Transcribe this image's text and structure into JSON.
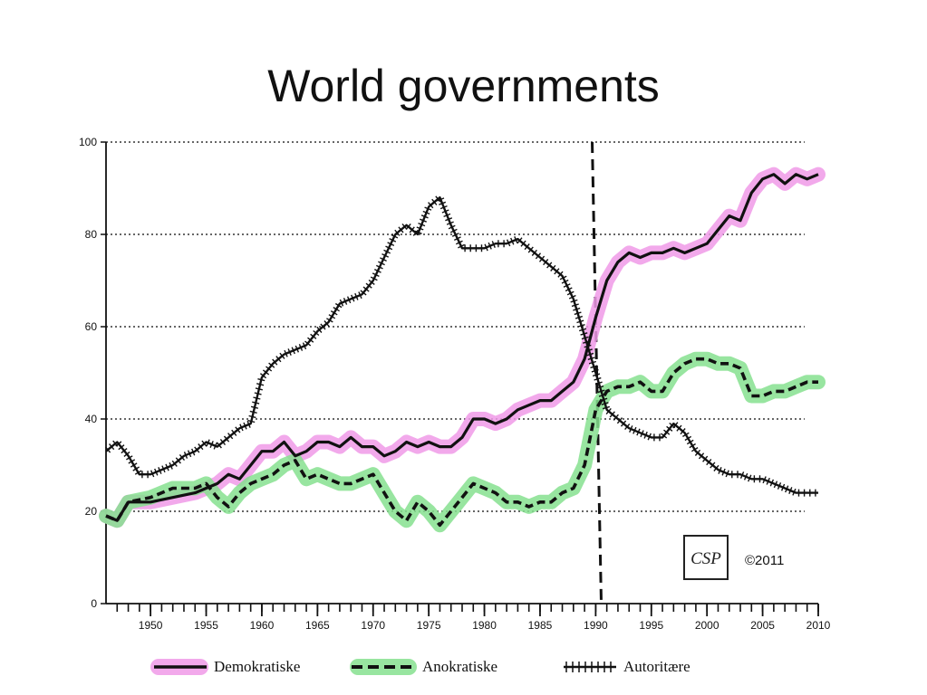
{
  "slide": {
    "title": "World governments"
  },
  "colors": {
    "demokratiske_highlight": "#f09ae8",
    "anokratiske_highlight": "#86e08f",
    "line": "#111111",
    "grid": "#333333"
  },
  "chart_data": {
    "type": "line",
    "x_ticks": [
      1950,
      1955,
      1960,
      1965,
      1970,
      1975,
      1980,
      1985,
      1990,
      1995,
      2000,
      2005,
      2010
    ],
    "y_ticks": [
      0,
      20,
      40,
      60,
      80,
      100
    ],
    "xlim": [
      1946,
      2010
    ],
    "ylim": [
      0,
      100
    ],
    "grid": true,
    "vertical_marker_x": 1990.5,
    "legend_position": "bottom",
    "series": [
      {
        "name": "Demokratiske",
        "style": "solid",
        "highlight": "pink",
        "points": [
          [
            1946,
            19
          ],
          [
            1947,
            18
          ],
          [
            1948,
            22
          ],
          [
            1950,
            22
          ],
          [
            1952,
            23
          ],
          [
            1954,
            24
          ],
          [
            1955,
            25
          ],
          [
            1956,
            26
          ],
          [
            1957,
            28
          ],
          [
            1958,
            27
          ],
          [
            1959,
            30
          ],
          [
            1960,
            33
          ],
          [
            1961,
            33
          ],
          [
            1962,
            35
          ],
          [
            1963,
            32
          ],
          [
            1964,
            33
          ],
          [
            1965,
            35
          ],
          [
            1966,
            35
          ],
          [
            1967,
            34
          ],
          [
            1968,
            36
          ],
          [
            1969,
            34
          ],
          [
            1970,
            34
          ],
          [
            1971,
            32
          ],
          [
            1972,
            33
          ],
          [
            1973,
            35
          ],
          [
            1974,
            34
          ],
          [
            1975,
            35
          ],
          [
            1976,
            34
          ],
          [
            1977,
            34
          ],
          [
            1978,
            36
          ],
          [
            1979,
            40
          ],
          [
            1980,
            40
          ],
          [
            1981,
            39
          ],
          [
            1982,
            40
          ],
          [
            1983,
            42
          ],
          [
            1984,
            43
          ],
          [
            1985,
            44
          ],
          [
            1986,
            44
          ],
          [
            1987,
            46
          ],
          [
            1988,
            48
          ],
          [
            1989,
            53
          ],
          [
            1990,
            62
          ],
          [
            1991,
            70
          ],
          [
            1992,
            74
          ],
          [
            1993,
            76
          ],
          [
            1994,
            75
          ],
          [
            1995,
            76
          ],
          [
            1996,
            76
          ],
          [
            1997,
            77
          ],
          [
            1998,
            76
          ],
          [
            1999,
            77
          ],
          [
            2000,
            78
          ],
          [
            2001,
            81
          ],
          [
            2002,
            84
          ],
          [
            2003,
            83
          ],
          [
            2004,
            89
          ],
          [
            2005,
            92
          ],
          [
            2006,
            93
          ],
          [
            2007,
            91
          ],
          [
            2008,
            93
          ],
          [
            2009,
            92
          ],
          [
            2010,
            93
          ]
        ]
      },
      {
        "name": "Anokratiske",
        "style": "dashed",
        "highlight": "green",
        "points": [
          [
            1946,
            19
          ],
          [
            1947,
            18
          ],
          [
            1948,
            22
          ],
          [
            1950,
            23
          ],
          [
            1952,
            25
          ],
          [
            1954,
            25
          ],
          [
            1955,
            26
          ],
          [
            1956,
            23
          ],
          [
            1957,
            21
          ],
          [
            1958,
            24
          ],
          [
            1959,
            26
          ],
          [
            1960,
            27
          ],
          [
            1961,
            28
          ],
          [
            1962,
            30
          ],
          [
            1963,
            31
          ],
          [
            1964,
            27
          ],
          [
            1965,
            28
          ],
          [
            1966,
            27
          ],
          [
            1967,
            26
          ],
          [
            1968,
            26
          ],
          [
            1969,
            27
          ],
          [
            1970,
            28
          ],
          [
            1971,
            24
          ],
          [
            1972,
            20
          ],
          [
            1973,
            18
          ],
          [
            1974,
            22
          ],
          [
            1975,
            20
          ],
          [
            1976,
            17
          ],
          [
            1977,
            20
          ],
          [
            1978,
            23
          ],
          [
            1979,
            26
          ],
          [
            1980,
            25
          ],
          [
            1981,
            24
          ],
          [
            1982,
            22
          ],
          [
            1983,
            22
          ],
          [
            1984,
            21
          ],
          [
            1985,
            22
          ],
          [
            1986,
            22
          ],
          [
            1987,
            24
          ],
          [
            1988,
            25
          ],
          [
            1989,
            30
          ],
          [
            1990,
            42
          ],
          [
            1991,
            46
          ],
          [
            1992,
            47
          ],
          [
            1993,
            47
          ],
          [
            1994,
            48
          ],
          [
            1995,
            46
          ],
          [
            1996,
            46
          ],
          [
            1997,
            50
          ],
          [
            1998,
            52
          ],
          [
            1999,
            53
          ],
          [
            2000,
            53
          ],
          [
            2001,
            52
          ],
          [
            2002,
            52
          ],
          [
            2003,
            51
          ],
          [
            2004,
            45
          ],
          [
            2005,
            45
          ],
          [
            2006,
            46
          ],
          [
            2007,
            46
          ],
          [
            2008,
            47
          ],
          [
            2009,
            48
          ],
          [
            2010,
            48
          ]
        ]
      },
      {
        "name": "Autoritære",
        "style": "crossed",
        "highlight": "none",
        "points": [
          [
            1946,
            33
          ],
          [
            1947,
            35
          ],
          [
            1948,
            32
          ],
          [
            1949,
            28
          ],
          [
            1950,
            28
          ],
          [
            1951,
            29
          ],
          [
            1952,
            30
          ],
          [
            1953,
            32
          ],
          [
            1954,
            33
          ],
          [
            1955,
            35
          ],
          [
            1956,
            34
          ],
          [
            1957,
            36
          ],
          [
            1958,
            38
          ],
          [
            1959,
            39
          ],
          [
            1960,
            49
          ],
          [
            1961,
            52
          ],
          [
            1962,
            54
          ],
          [
            1963,
            55
          ],
          [
            1964,
            56
          ],
          [
            1965,
            59
          ],
          [
            1966,
            61
          ],
          [
            1967,
            65
          ],
          [
            1968,
            66
          ],
          [
            1969,
            67
          ],
          [
            1970,
            70
          ],
          [
            1971,
            75
          ],
          [
            1972,
            80
          ],
          [
            1973,
            82
          ],
          [
            1974,
            80
          ],
          [
            1975,
            86
          ],
          [
            1976,
            88
          ],
          [
            1977,
            82
          ],
          [
            1978,
            77
          ],
          [
            1979,
            77
          ],
          [
            1980,
            77
          ],
          [
            1981,
            78
          ],
          [
            1982,
            78
          ],
          [
            1983,
            79
          ],
          [
            1984,
            77
          ],
          [
            1985,
            75
          ],
          [
            1986,
            73
          ],
          [
            1987,
            71
          ],
          [
            1988,
            66
          ],
          [
            1989,
            58
          ],
          [
            1990,
            50
          ],
          [
            1991,
            42
          ],
          [
            1992,
            40
          ],
          [
            1993,
            38
          ],
          [
            1994,
            37
          ],
          [
            1995,
            36
          ],
          [
            1996,
            36
          ],
          [
            1997,
            39
          ],
          [
            1998,
            37
          ],
          [
            1999,
            33
          ],
          [
            2000,
            31
          ],
          [
            2001,
            29
          ],
          [
            2002,
            28
          ],
          [
            2003,
            28
          ],
          [
            2004,
            27
          ],
          [
            2005,
            27
          ],
          [
            2006,
            26
          ],
          [
            2007,
            25
          ],
          [
            2008,
            24
          ],
          [
            2009,
            24
          ],
          [
            2010,
            24
          ]
        ]
      }
    ],
    "annotation": {
      "logo": "CSP",
      "copyright": "©2011"
    }
  }
}
